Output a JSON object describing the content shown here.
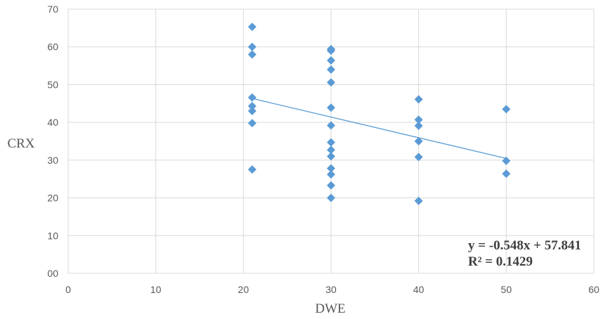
{
  "chart_data": {
    "type": "scatter",
    "title": "",
    "xlabel": "DWE",
    "ylabel": "CRX",
    "xlim": [
      0,
      60
    ],
    "ylim": [
      0,
      70
    ],
    "x_ticks": [
      "0",
      "10",
      "20",
      "30",
      "40",
      "50",
      "60"
    ],
    "y_ticks": [
      "00",
      "10",
      "20",
      "30",
      "40",
      "50",
      "60",
      "70"
    ],
    "grid": true,
    "legend": "none",
    "marker": "diamond",
    "colors": {
      "points": "#5b9bd5",
      "trendline": "#5b9bd5",
      "grid": "#d9d9d9"
    },
    "series": [
      {
        "points": [
          [
            21,
            65.3
          ],
          [
            21,
            60.0
          ],
          [
            21,
            58.0
          ],
          [
            21,
            46.6
          ],
          [
            21,
            44.3
          ],
          [
            21,
            43.0
          ],
          [
            21,
            39.8
          ],
          [
            21,
            27.5
          ],
          [
            30,
            59.4
          ],
          [
            30,
            59.0
          ],
          [
            30,
            56.4
          ],
          [
            30,
            54.0
          ],
          [
            30,
            50.6
          ],
          [
            30,
            43.9
          ],
          [
            30,
            39.2
          ],
          [
            30,
            34.7
          ],
          [
            30,
            32.7
          ],
          [
            30,
            31.0
          ],
          [
            30,
            27.8
          ],
          [
            30,
            26.2
          ],
          [
            30,
            23.3
          ],
          [
            30,
            20.0
          ],
          [
            40,
            46.1
          ],
          [
            40,
            40.7
          ],
          [
            40,
            39.1
          ],
          [
            40,
            35.0
          ],
          [
            40,
            30.8
          ],
          [
            40,
            19.2
          ],
          [
            50,
            43.5
          ],
          [
            50,
            29.8
          ],
          [
            50,
            26.4
          ]
        ]
      }
    ],
    "trendline": {
      "type": "linear",
      "slope": -0.548,
      "intercept": 57.841,
      "x_range": [
        21,
        50
      ]
    },
    "annotations": [
      "y = -0.548x + 57.841",
      "R² = 0.1429"
    ]
  }
}
